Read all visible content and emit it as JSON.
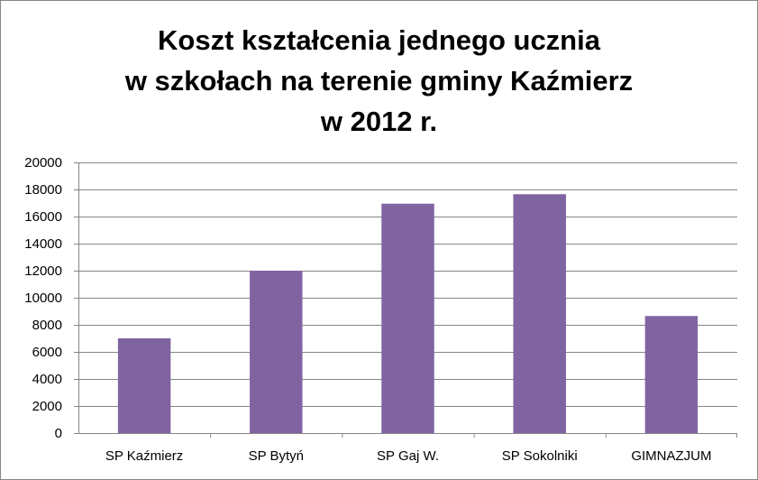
{
  "chart_data": {
    "type": "bar",
    "title": [
      "Koszt kształcenia jednego ucznia",
      "w szkołach na terenie gminy Kaźmierz",
      "w 2012 r."
    ],
    "categories": [
      "SP Kaźmierz",
      "SP Bytyń",
      "SP Gaj W.",
      "SP Sokolniki",
      "GIMNAZJUM"
    ],
    "values": [
      7000,
      12000,
      16950,
      17650,
      8650
    ],
    "ylim": [
      0,
      20000
    ],
    "ytick_step": 2000,
    "yticks": [
      "0",
      "2000",
      "4000",
      "6000",
      "8000",
      "10000",
      "12000",
      "14000",
      "16000",
      "18000",
      "20000"
    ],
    "grid": true,
    "legend": "none",
    "bar_color": "#8064A2",
    "grid_color": "#868686"
  }
}
